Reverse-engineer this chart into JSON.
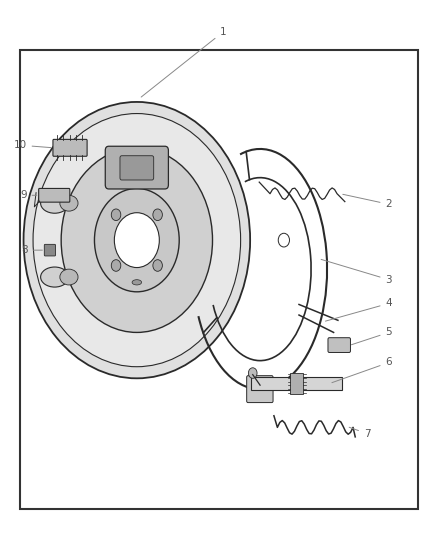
{
  "bg_color": "#ffffff",
  "border_color": "#333333",
  "line_color": "#2a2a2a",
  "label_color": "#555555",
  "fig_width": 4.38,
  "fig_height": 5.33
}
